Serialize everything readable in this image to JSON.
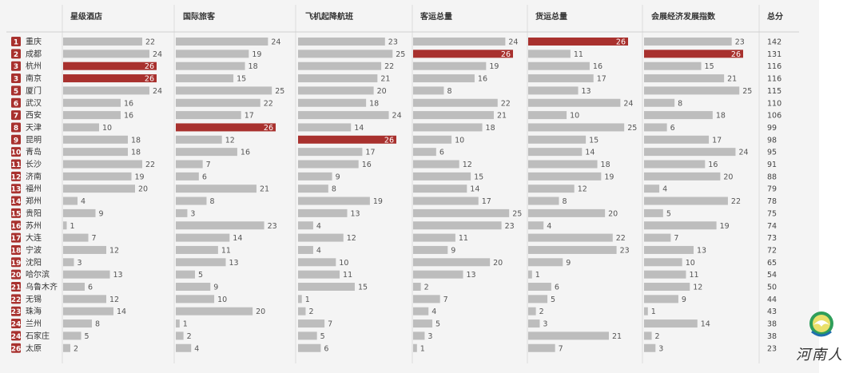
{
  "chart_data": {
    "type": "bar",
    "headers": [
      "星级酒店",
      "国际旅客",
      "飞机起降航班",
      "客运总量",
      "货运总量",
      "会展经济发展指数",
      "总分"
    ],
    "series_names": [
      "星级酒店",
      "国际旅客",
      "飞机起降航班",
      "客运总量",
      "货运总量",
      "会展经济发展指数"
    ],
    "total_label": "总分",
    "max_score": 26,
    "colors": {
      "normal": "#bdbdbd",
      "top": "#a8312e",
      "rank_badge": "#a8312e"
    },
    "rows": [
      {
        "rank": "1",
        "city": "重庆",
        "values": [
          22,
          24,
          23,
          24,
          26,
          23
        ],
        "total": "142"
      },
      {
        "rank": "2",
        "city": "成都",
        "values": [
          24,
          19,
          25,
          26,
          11,
          26
        ],
        "total": "131"
      },
      {
        "rank": "3",
        "city": "杭州",
        "values": [
          26,
          18,
          22,
          19,
          16,
          15
        ],
        "total": "116"
      },
      {
        "rank": "3",
        "city": "南京",
        "values": [
          26,
          15,
          21,
          16,
          17,
          21
        ],
        "total": "116"
      },
      {
        "rank": "5",
        "city": "厦门",
        "values": [
          24,
          25,
          20,
          8,
          13,
          25
        ],
        "total": "115"
      },
      {
        "rank": "6",
        "city": "武汉",
        "values": [
          16,
          22,
          18,
          22,
          24,
          8
        ],
        "total": "110"
      },
      {
        "rank": "7",
        "city": "西安",
        "values": [
          16,
          17,
          24,
          21,
          10,
          18
        ],
        "total": "106"
      },
      {
        "rank": "8",
        "city": "天津",
        "values": [
          10,
          26,
          14,
          18,
          25,
          6
        ],
        "total": "99"
      },
      {
        "rank": "9",
        "city": "昆明",
        "values": [
          18,
          12,
          26,
          10,
          15,
          17
        ],
        "total": "98"
      },
      {
        "rank": "10",
        "city": "青岛",
        "values": [
          18,
          16,
          17,
          6,
          14,
          24
        ],
        "total": "95"
      },
      {
        "rank": "11",
        "city": "长沙",
        "values": [
          22,
          7,
          16,
          12,
          18,
          16
        ],
        "total": "91"
      },
      {
        "rank": "12",
        "city": "济南",
        "values": [
          19,
          6,
          9,
          15,
          19,
          20
        ],
        "total": "88"
      },
      {
        "rank": "13",
        "city": "福州",
        "values": [
          20,
          21,
          8,
          14,
          12,
          4
        ],
        "total": "79"
      },
      {
        "rank": "14",
        "city": "郑州",
        "values": [
          4,
          8,
          19,
          17,
          8,
          22
        ],
        "total": "78"
      },
      {
        "rank": "15",
        "city": "贵阳",
        "values": [
          9,
          3,
          13,
          25,
          20,
          5
        ],
        "total": "75"
      },
      {
        "rank": "16",
        "city": "苏州",
        "values": [
          1,
          23,
          4,
          23,
          4,
          19
        ],
        "total": "74"
      },
      {
        "rank": "17",
        "city": "大连",
        "values": [
          7,
          14,
          12,
          11,
          22,
          7
        ],
        "total": "73"
      },
      {
        "rank": "18",
        "city": "宁波",
        "values": [
          12,
          11,
          4,
          9,
          23,
          13
        ],
        "total": "72"
      },
      {
        "rank": "19",
        "city": "沈阳",
        "values": [
          3,
          13,
          10,
          20,
          9,
          10
        ],
        "total": "65"
      },
      {
        "rank": "20",
        "city": "哈尔滨",
        "values": [
          13,
          5,
          11,
          13,
          1,
          11
        ],
        "total": "54"
      },
      {
        "rank": "21",
        "city": "乌鲁木齐",
        "values": [
          6,
          9,
          15,
          2,
          6,
          12
        ],
        "total": "50"
      },
      {
        "rank": "22",
        "city": "无锡",
        "values": [
          12,
          10,
          1,
          7,
          5,
          9
        ],
        "total": "44"
      },
      {
        "rank": "23",
        "city": "珠海",
        "values": [
          14,
          20,
          2,
          4,
          2,
          1
        ],
        "total": "43"
      },
      {
        "rank": "24",
        "city": "兰州",
        "values": [
          8,
          1,
          7,
          5,
          3,
          14
        ],
        "total": "38"
      },
      {
        "rank": "24",
        "city": "石家庄",
        "values": [
          5,
          2,
          5,
          3,
          21,
          2
        ],
        "total": "38"
      },
      {
        "rank": "26",
        "city": "太原",
        "values": [
          2,
          4,
          6,
          1,
          7,
          3
        ],
        "total": "23"
      }
    ]
  },
  "watermark": {
    "text": "河南人",
    "logo_icon": "globe-dove-logo-icon"
  }
}
